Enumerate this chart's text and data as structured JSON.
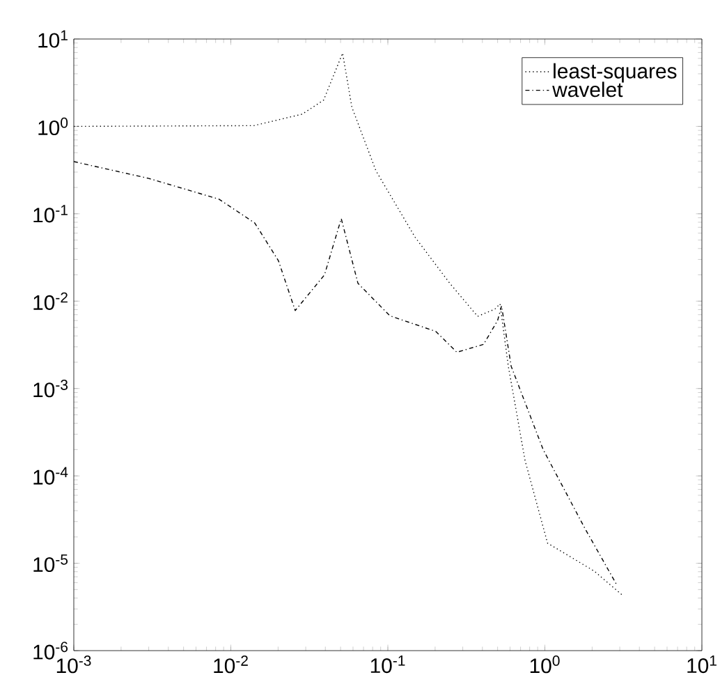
{
  "chart_data": {
    "type": "line",
    "log": "xy",
    "xlim": [
      0.001,
      10
    ],
    "ylim": [
      1e-06,
      10
    ],
    "xticks": [
      {
        "value": 0.001,
        "label": "10$^{-3}$"
      },
      {
        "value": 0.01,
        "label": "10$^{-2}$"
      },
      {
        "value": 0.1,
        "label": "10$^{-1}$"
      },
      {
        "value": 1,
        "label": "10$^{0}$"
      },
      {
        "value": 10,
        "label": "10$^{1}$"
      }
    ],
    "yticks": [
      {
        "value": 1e-06,
        "label": "10$^{-6}$"
      },
      {
        "value": 1e-05,
        "label": "10$^{-5}$"
      },
      {
        "value": 0.0001,
        "label": "10$^{-4}$"
      },
      {
        "value": 0.001,
        "label": "10$^{-3}$"
      },
      {
        "value": 0.01,
        "label": "10$^{-2}$"
      },
      {
        "value": 0.1,
        "label": "10$^{-1}$"
      },
      {
        "value": 1,
        "label": "10$^{0}$"
      },
      {
        "value": 10,
        "label": "10$^{1}$"
      }
    ],
    "legend": "top right",
    "grid": false,
    "marker": "none",
    "series": [
      {
        "name": "least-squares",
        "color": "#000000",
        "line_style": "dotted",
        "x": [
          0.001,
          0.014,
          0.0285,
          0.039,
          0.0515,
          0.059,
          0.084,
          0.149,
          0.248,
          0.373,
          0.48,
          0.518,
          0.585,
          0.748,
          1.04,
          2.07,
          3.12
        ],
        "values": [
          1.0,
          1.02,
          1.38,
          2.0,
          6.9,
          1.66,
          0.31,
          0.054,
          0.016,
          0.0067,
          0.0081,
          0.0093,
          0.0018,
          0.00015,
          1.7e-05,
          8.1e-06,
          4.3e-06
        ]
      },
      {
        "name": "wavelet",
        "color": "#000000",
        "line_style": "dashdot",
        "x": [
          0.001,
          0.003,
          0.0084,
          0.0142,
          0.0201,
          0.0257,
          0.0395,
          0.0505,
          0.0645,
          0.103,
          0.202,
          0.275,
          0.407,
          0.5,
          0.53,
          0.61,
          0.975,
          1.8,
          2.88
        ],
        "values": [
          0.395,
          0.254,
          0.147,
          0.0785,
          0.029,
          0.0078,
          0.02,
          0.088,
          0.016,
          0.0068,
          0.0045,
          0.0026,
          0.0032,
          0.006,
          0.0088,
          0.0018,
          0.0002,
          2.5e-05,
          5.6e-06
        ]
      }
    ]
  }
}
